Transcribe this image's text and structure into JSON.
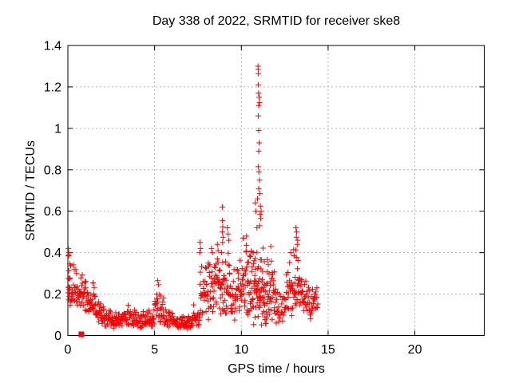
{
  "page": {
    "background": "#ffffff"
  },
  "chart_data": {
    "type": "scatter",
    "title": "Day 338 of 2022, SRMTID for receiver ske8",
    "xlabel": "GPS time / hours",
    "ylabel": "SRMTID / TECUs",
    "xlim": [
      0,
      24
    ],
    "ylim": [
      0,
      1.4
    ],
    "xticks": [
      0,
      5,
      10,
      15,
      20
    ],
    "xtick_labels": [
      "0",
      "5",
      "10",
      "15",
      "20"
    ],
    "yticks": [
      0,
      0.2,
      0.4,
      0.6,
      0.8,
      1,
      1.2,
      1.4
    ],
    "ytick_labels": [
      "0",
      "0.2",
      "0.4",
      "0.6",
      "0.8",
      "1",
      "1.2",
      "1.4"
    ],
    "grid": true,
    "legend": false,
    "frame_color": "#000000",
    "grid_color": "#b4b4b4",
    "marker": {
      "glyph": "plus",
      "color": "#ff0000",
      "size": 7
    },
    "seed": 338,
    "data_extent": {
      "x_first": 0.02,
      "x_last": 14.42,
      "y_max": 1.3
    },
    "special_points": [
      {
        "x": 0.78,
        "y": 0.0,
        "glyph": "filled-square",
        "color": "#ff0000"
      }
    ],
    "peak_points": [
      [
        10.96,
        1.3
      ],
      [
        10.97,
        1.285
      ],
      [
        10.98,
        1.265
      ],
      [
        10.97,
        1.21
      ],
      [
        10.99,
        1.17
      ],
      [
        11.02,
        1.15
      ],
      [
        11.05,
        1.125
      ],
      [
        11.0,
        1.11
      ],
      [
        10.97,
        1.06
      ],
      [
        11.0,
        0.99
      ],
      [
        11.03,
        0.93
      ],
      [
        11.0,
        0.89
      ],
      [
        10.97,
        0.815
      ],
      [
        11.01,
        0.79
      ],
      [
        11.05,
        0.75
      ],
      [
        11.0,
        0.71
      ],
      [
        11.07,
        0.685
      ],
      [
        10.93,
        0.66
      ],
      [
        11.1,
        0.625
      ],
      [
        11.14,
        0.6
      ],
      [
        11.08,
        0.585
      ],
      [
        11.12,
        0.565
      ],
      [
        11.06,
        0.53
      ],
      [
        10.9,
        0.52
      ],
      [
        10.8,
        0.64
      ],
      [
        10.84,
        0.6
      ],
      [
        8.9,
        0.62
      ],
      [
        8.91,
        0.555
      ],
      [
        8.93,
        0.525
      ],
      [
        8.9,
        0.5
      ],
      [
        8.94,
        0.475
      ],
      [
        8.92,
        0.45
      ],
      [
        9.2,
        0.52
      ],
      [
        9.24,
        0.49
      ],
      [
        9.28,
        0.46
      ],
      [
        10.1,
        0.47
      ],
      [
        10.3,
        0.48
      ],
      [
        7.62,
        0.45
      ],
      [
        7.65,
        0.42
      ],
      [
        7.6,
        0.4
      ],
      [
        8.28,
        0.42
      ],
      [
        8.33,
        0.4
      ],
      [
        8.62,
        0.44
      ],
      [
        8.66,
        0.41
      ],
      [
        13.15,
        0.52
      ],
      [
        13.19,
        0.5
      ],
      [
        13.17,
        0.475
      ],
      [
        13.25,
        0.46
      ],
      [
        13.22,
        0.44
      ],
      [
        0.03,
        0.42
      ],
      [
        0.05,
        0.4
      ],
      [
        0.02,
        0.385
      ],
      [
        5.18,
        0.265
      ],
      [
        5.22,
        0.245
      ],
      [
        11.7,
        0.43
      ],
      [
        12.85,
        0.4
      ]
    ],
    "band_segments": [
      [
        0.02,
        0.14,
        16,
        0.13,
        0.4
      ],
      [
        0.14,
        0.55,
        24,
        0.14,
        0.36
      ],
      [
        0.55,
        1.02,
        28,
        0.12,
        0.33
      ],
      [
        1.02,
        1.6,
        34,
        0.1,
        0.27
      ],
      [
        1.6,
        2.1,
        30,
        0.055,
        0.19
      ],
      [
        2.1,
        2.7,
        30,
        0.035,
        0.135
      ],
      [
        2.7,
        3.3,
        30,
        0.03,
        0.145
      ],
      [
        3.3,
        3.9,
        30,
        0.045,
        0.175
      ],
      [
        3.9,
        4.5,
        30,
        0.03,
        0.125
      ],
      [
        4.5,
        5.0,
        26,
        0.04,
        0.135
      ],
      [
        5.0,
        5.55,
        30,
        0.055,
        0.265
      ],
      [
        5.55,
        6.1,
        28,
        0.035,
        0.145
      ],
      [
        6.1,
        6.7,
        28,
        0.02,
        0.105
      ],
      [
        6.7,
        7.2,
        26,
        0.025,
        0.115
      ],
      [
        7.2,
        7.6,
        22,
        0.04,
        0.165
      ],
      [
        7.6,
        8.05,
        28,
        0.08,
        0.4
      ],
      [
        8.05,
        8.55,
        30,
        0.06,
        0.42
      ],
      [
        8.55,
        9.05,
        34,
        0.08,
        0.46
      ],
      [
        9.05,
        9.35,
        20,
        0.1,
        0.46
      ],
      [
        9.35,
        9.8,
        26,
        0.05,
        0.38
      ],
      [
        9.8,
        10.25,
        30,
        0.1,
        0.45
      ],
      [
        10.25,
        10.7,
        36,
        0.05,
        0.47
      ],
      [
        10.7,
        11.1,
        38,
        0.05,
        0.49
      ],
      [
        11.1,
        11.55,
        38,
        0.04,
        0.46
      ],
      [
        11.55,
        12.0,
        32,
        0.05,
        0.42
      ],
      [
        12.0,
        12.55,
        24,
        0.045,
        0.24
      ],
      [
        12.55,
        13.0,
        28,
        0.08,
        0.4
      ],
      [
        13.0,
        13.5,
        36,
        0.13,
        0.43
      ],
      [
        13.5,
        14.0,
        28,
        0.08,
        0.31
      ],
      [
        14.0,
        14.42,
        20,
        0.1,
        0.25
      ]
    ]
  }
}
